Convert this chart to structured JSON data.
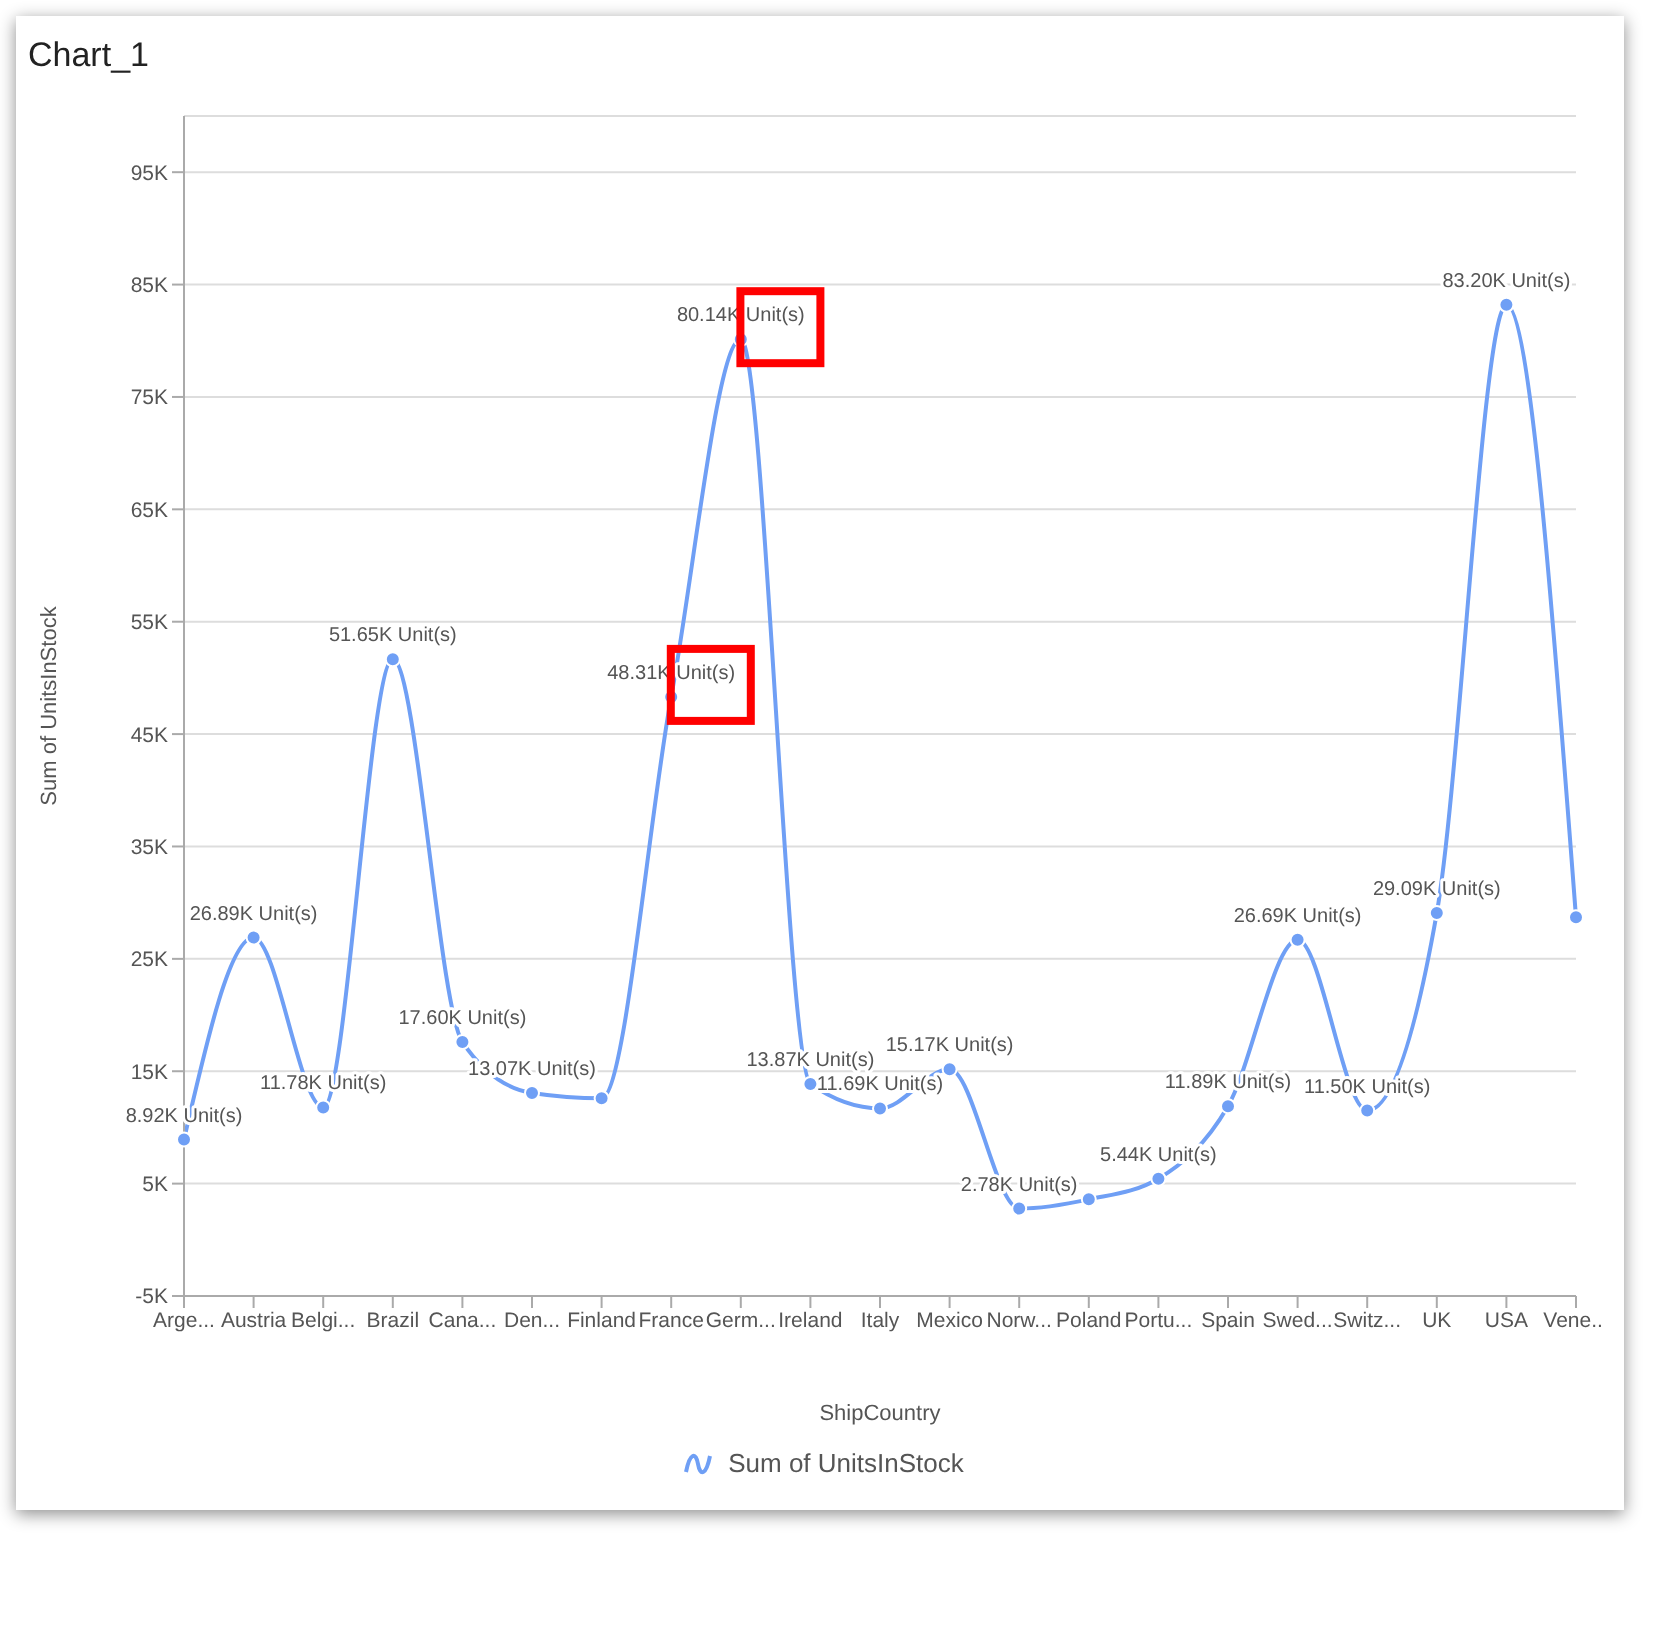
{
  "chart_data": {
    "type": "line",
    "title": "Chart_1",
    "xlabel": "ShipCountry",
    "ylabel": "Sum of UnitsInStock",
    "categories": [
      "Arge...",
      "Austria",
      "Belgi...",
      "Brazil",
      "Cana...",
      "Den...",
      "Finland",
      "France",
      "Germ...",
      "Ireland",
      "Italy",
      "Mexico",
      "Norw...",
      "Poland",
      "Portu...",
      "Spain",
      "Swed...",
      "Switz...",
      "UK",
      "USA",
      "Vene..."
    ],
    "series": [
      {
        "name": "Sum of UnitsInStock",
        "color": "#6f9ff5",
        "values": [
          8920,
          26890,
          11780,
          51650,
          17600,
          13070,
          12600,
          48310,
          80140,
          13870,
          11690,
          15170,
          2780,
          3600,
          5440,
          11890,
          26690,
          11500,
          29090,
          83200,
          28700
        ],
        "value_labels": [
          "8.92K Unit(s)",
          "26.89K Unit(s)",
          "11.78K Unit(s)",
          "51.65K Unit(s)",
          "17.60K Unit(s)",
          "13.07K Unit(s)",
          null,
          "48.31K Unit(s)",
          "80.14K Unit(s)",
          "13.87K Unit(s)",
          "11.69K Unit(s)",
          "15.17K Unit(s)",
          "2.78K Unit(s)",
          null,
          "5.44K Unit(s)",
          "11.89K Unit(s)",
          "26.69K Unit(s)",
          "11.50K Unit(s)",
          "29.09K Unit(s)",
          "83.20K Unit(s)",
          null
        ]
      }
    ],
    "ylim": [
      -5000,
      100000
    ],
    "yticks": [
      {
        "value": -5000,
        "label": "-5K"
      },
      {
        "value": 5000,
        "label": "5K"
      },
      {
        "value": 15000,
        "label": "15K"
      },
      {
        "value": 25000,
        "label": "25K"
      },
      {
        "value": 35000,
        "label": "35K"
      },
      {
        "value": 45000,
        "label": "45K"
      },
      {
        "value": 55000,
        "label": "55K"
      },
      {
        "value": 65000,
        "label": "65K"
      },
      {
        "value": 75000,
        "label": "75K"
      },
      {
        "value": 85000,
        "label": "85K"
      },
      {
        "value": 95000,
        "label": "95K"
      }
    ],
    "grid": "y",
    "legend": "bottom",
    "marker": "circle",
    "line_style": "solid"
  }
}
